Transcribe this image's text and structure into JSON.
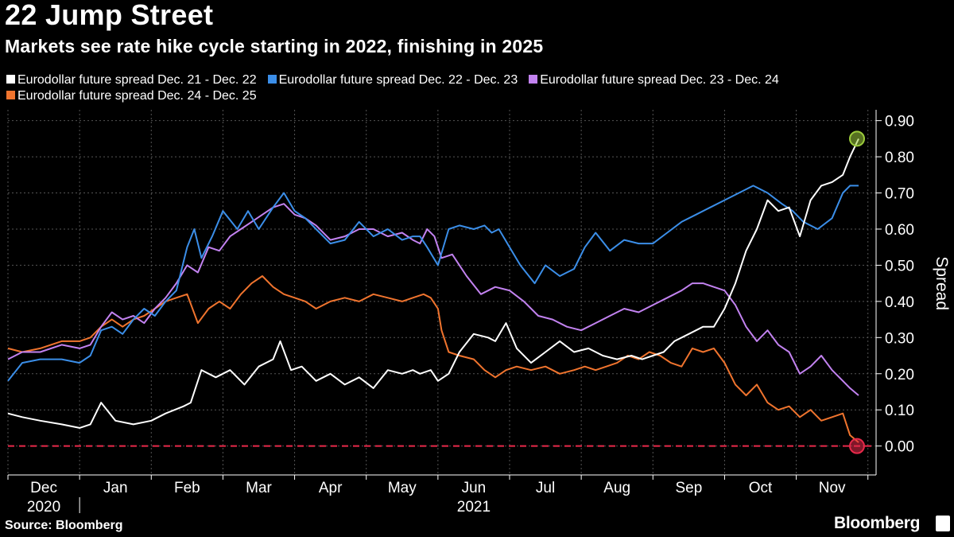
{
  "header": {
    "title": "22 Jump Street",
    "subtitle": "Markets see rate hike cycle starting in 2022, finishing in 2025"
  },
  "footer": {
    "source": "Source: Bloomberg",
    "brand": "Bloomberg"
  },
  "colors": {
    "background": "#000000",
    "grid": "#555555",
    "zero_line": "#e8294a",
    "top_marker": "#9ccc3c"
  },
  "chart_data": {
    "type": "line",
    "title": "22 Jump Street",
    "subtitle": "Markets see rate hike cycle starting in 2022, finishing in 2025",
    "xlabel": "",
    "ylabel": "Spread",
    "ylim": [
      -0.08,
      0.93
    ],
    "yticks": [
      0.0,
      0.1,
      0.2,
      0.3,
      0.4,
      0.5,
      0.6,
      0.7,
      0.8,
      0.9
    ],
    "ytick_labels": [
      "0.00",
      "0.10",
      "0.20",
      "0.30",
      "0.40",
      "0.50",
      "0.60",
      "0.70",
      "0.80",
      "0.90"
    ],
    "x_range": [
      0,
      11.87
    ],
    "x_unit": "months since Dec 1, 2020",
    "month_labels": [
      "Dec",
      "Jan",
      "Feb",
      "Mar",
      "Apr",
      "May",
      "Jun",
      "Jul",
      "Aug",
      "Sep",
      "Oct",
      "Nov"
    ],
    "year_labels": [
      "2020",
      "2021"
    ],
    "grid": true,
    "reference_line": {
      "y": 0.0,
      "style": "dashed",
      "color": "#e8294a"
    },
    "series": [
      {
        "name": "Eurodollar future spread Dec. 21 - Dec. 22",
        "color": "#ffffff",
        "x": [
          0,
          0.2,
          0.45,
          0.75,
          1.0,
          1.15,
          1.3,
          1.5,
          1.75,
          2.0,
          2.2,
          2.45,
          2.55,
          2.7,
          2.9,
          3.1,
          3.3,
          3.5,
          3.7,
          3.8,
          3.95,
          4.1,
          4.3,
          4.5,
          4.7,
          4.9,
          5.1,
          5.3,
          5.5,
          5.65,
          5.75,
          5.9,
          6.0,
          6.15,
          6.3,
          6.5,
          6.7,
          6.8,
          6.95,
          7.1,
          7.3,
          7.5,
          7.7,
          7.9,
          8.1,
          8.3,
          8.5,
          8.7,
          8.85,
          9.0,
          9.15,
          9.3,
          9.5,
          9.7,
          9.85,
          10.0,
          10.15,
          10.3,
          10.45,
          10.6,
          10.75,
          10.9,
          11.05,
          11.2,
          11.35,
          11.5,
          11.65,
          11.75,
          11.87
        ],
        "values": [
          0.09,
          0.08,
          0.07,
          0.06,
          0.05,
          0.06,
          0.12,
          0.07,
          0.06,
          0.07,
          0.09,
          0.11,
          0.12,
          0.21,
          0.19,
          0.21,
          0.17,
          0.22,
          0.24,
          0.29,
          0.21,
          0.22,
          0.18,
          0.2,
          0.17,
          0.19,
          0.16,
          0.21,
          0.2,
          0.21,
          0.2,
          0.21,
          0.18,
          0.2,
          0.26,
          0.31,
          0.3,
          0.29,
          0.34,
          0.27,
          0.23,
          0.26,
          0.29,
          0.26,
          0.27,
          0.25,
          0.24,
          0.25,
          0.24,
          0.25,
          0.26,
          0.29,
          0.31,
          0.33,
          0.33,
          0.38,
          0.45,
          0.54,
          0.6,
          0.68,
          0.65,
          0.66,
          0.58,
          0.68,
          0.72,
          0.73,
          0.75,
          0.8,
          0.85
        ]
      },
      {
        "name": "Eurodollar future spread Dec. 22 - Dec. 23",
        "color": "#3b8ee8",
        "x": [
          0,
          0.2,
          0.45,
          0.75,
          1.0,
          1.15,
          1.3,
          1.45,
          1.6,
          1.75,
          1.9,
          2.05,
          2.2,
          2.35,
          2.5,
          2.6,
          2.7,
          2.85,
          3.0,
          3.2,
          3.35,
          3.5,
          3.7,
          3.85,
          4.0,
          4.15,
          4.3,
          4.5,
          4.7,
          4.9,
          5.1,
          5.3,
          5.5,
          5.65,
          5.75,
          5.85,
          6.0,
          6.15,
          6.3,
          6.5,
          6.65,
          6.75,
          6.85,
          7.0,
          7.15,
          7.35,
          7.5,
          7.7,
          7.9,
          8.05,
          8.2,
          8.4,
          8.6,
          8.8,
          9.0,
          9.2,
          9.4,
          9.6,
          9.8,
          10.0,
          10.2,
          10.4,
          10.6,
          10.8,
          10.95,
          11.1,
          11.3,
          11.5,
          11.65,
          11.75,
          11.87
        ],
        "values": [
          0.18,
          0.23,
          0.24,
          0.24,
          0.23,
          0.25,
          0.32,
          0.33,
          0.31,
          0.35,
          0.38,
          0.36,
          0.4,
          0.43,
          0.55,
          0.6,
          0.52,
          0.58,
          0.65,
          0.6,
          0.65,
          0.6,
          0.66,
          0.7,
          0.65,
          0.63,
          0.6,
          0.56,
          0.57,
          0.62,
          0.58,
          0.6,
          0.57,
          0.58,
          0.58,
          0.55,
          0.5,
          0.6,
          0.61,
          0.6,
          0.61,
          0.59,
          0.6,
          0.55,
          0.5,
          0.45,
          0.5,
          0.47,
          0.49,
          0.55,
          0.59,
          0.54,
          0.57,
          0.56,
          0.56,
          0.59,
          0.62,
          0.64,
          0.66,
          0.68,
          0.7,
          0.72,
          0.7,
          0.67,
          0.65,
          0.62,
          0.6,
          0.63,
          0.7,
          0.72,
          0.72
        ]
      },
      {
        "name": "Eurodollar future spread Dec. 23 - Dec. 24",
        "color": "#c282f0",
        "x": [
          0,
          0.2,
          0.45,
          0.75,
          1.0,
          1.15,
          1.3,
          1.45,
          1.6,
          1.75,
          1.9,
          2.05,
          2.2,
          2.35,
          2.5,
          2.65,
          2.8,
          2.95,
          3.1,
          3.25,
          3.4,
          3.55,
          3.7,
          3.85,
          4.0,
          4.15,
          4.3,
          4.5,
          4.7,
          4.9,
          5.1,
          5.3,
          5.5,
          5.65,
          5.75,
          5.85,
          5.95,
          6.05,
          6.2,
          6.4,
          6.6,
          6.8,
          7.0,
          7.2,
          7.4,
          7.6,
          7.8,
          8.0,
          8.2,
          8.4,
          8.6,
          8.8,
          9.0,
          9.2,
          9.4,
          9.55,
          9.7,
          9.85,
          10.0,
          10.15,
          10.3,
          10.45,
          10.6,
          10.75,
          10.9,
          11.05,
          11.2,
          11.35,
          11.5,
          11.65,
          11.75,
          11.87
        ],
        "values": [
          0.24,
          0.26,
          0.26,
          0.28,
          0.27,
          0.28,
          0.33,
          0.37,
          0.35,
          0.36,
          0.34,
          0.38,
          0.41,
          0.45,
          0.5,
          0.48,
          0.55,
          0.54,
          0.58,
          0.6,
          0.62,
          0.64,
          0.66,
          0.67,
          0.64,
          0.63,
          0.61,
          0.57,
          0.58,
          0.6,
          0.6,
          0.58,
          0.59,
          0.57,
          0.56,
          0.6,
          0.58,
          0.52,
          0.53,
          0.47,
          0.42,
          0.44,
          0.43,
          0.4,
          0.36,
          0.35,
          0.33,
          0.32,
          0.34,
          0.36,
          0.38,
          0.37,
          0.39,
          0.41,
          0.43,
          0.45,
          0.45,
          0.44,
          0.43,
          0.39,
          0.33,
          0.29,
          0.32,
          0.28,
          0.26,
          0.2,
          0.22,
          0.25,
          0.21,
          0.18,
          0.16,
          0.14
        ]
      },
      {
        "name": "Eurodollar future spread Dec. 24 - Dec. 25",
        "color": "#f0742e",
        "x": [
          0,
          0.2,
          0.45,
          0.75,
          1.0,
          1.15,
          1.3,
          1.45,
          1.6,
          1.75,
          1.9,
          2.05,
          2.2,
          2.35,
          2.5,
          2.65,
          2.8,
          2.95,
          3.1,
          3.25,
          3.4,
          3.55,
          3.7,
          3.85,
          4.0,
          4.15,
          4.3,
          4.5,
          4.7,
          4.9,
          5.1,
          5.3,
          5.5,
          5.65,
          5.8,
          5.9,
          6.0,
          6.05,
          6.15,
          6.3,
          6.5,
          6.65,
          6.8,
          6.95,
          7.1,
          7.3,
          7.5,
          7.7,
          7.9,
          8.05,
          8.2,
          8.35,
          8.5,
          8.65,
          8.8,
          8.95,
          9.1,
          9.25,
          9.4,
          9.55,
          9.7,
          9.85,
          10.0,
          10.15,
          10.3,
          10.45,
          10.6,
          10.75,
          10.9,
          11.05,
          11.2,
          11.35,
          11.5,
          11.65,
          11.75,
          11.87
        ],
        "values": [
          0.27,
          0.26,
          0.27,
          0.29,
          0.29,
          0.3,
          0.33,
          0.35,
          0.33,
          0.35,
          0.36,
          0.38,
          0.4,
          0.41,
          0.42,
          0.34,
          0.38,
          0.4,
          0.38,
          0.42,
          0.45,
          0.47,
          0.44,
          0.42,
          0.41,
          0.4,
          0.38,
          0.4,
          0.41,
          0.4,
          0.42,
          0.41,
          0.4,
          0.41,
          0.42,
          0.41,
          0.38,
          0.32,
          0.26,
          0.25,
          0.24,
          0.21,
          0.19,
          0.21,
          0.22,
          0.21,
          0.22,
          0.2,
          0.21,
          0.22,
          0.21,
          0.22,
          0.23,
          0.25,
          0.24,
          0.26,
          0.25,
          0.23,
          0.22,
          0.27,
          0.26,
          0.27,
          0.23,
          0.17,
          0.14,
          0.17,
          0.12,
          0.1,
          0.11,
          0.08,
          0.1,
          0.07,
          0.08,
          0.09,
          0.03,
          0.01
        ]
      }
    ],
    "annotations": [
      {
        "type": "circle-marker",
        "series": 0,
        "x": 11.87,
        "y": 0.85,
        "color": "#9ccc3c"
      },
      {
        "type": "circle-marker",
        "series": 3,
        "x": 11.87,
        "y": 0.0,
        "color": "#e8294a"
      }
    ]
  }
}
